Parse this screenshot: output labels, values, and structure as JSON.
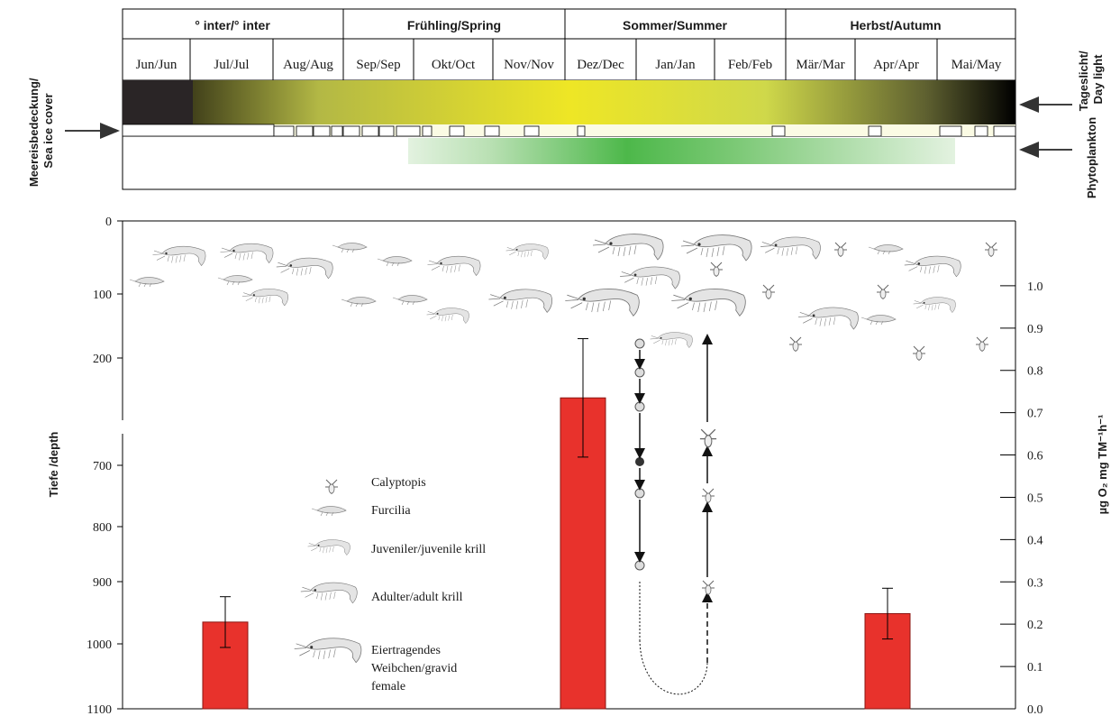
{
  "seasons": [
    "° inter/° inter",
    "Frühling/Spring",
    "Sommer/Summer",
    "Herbst/Autumn"
  ],
  "months": [
    "Jun/Jun",
    "Jul/Jul",
    "Aug/Aug",
    "Sep/Sep",
    "Okt/Oct",
    "Nov/Nov",
    "Dez/Dec",
    "Jan/Jan",
    "Feb/Feb",
    "Mär/Mar",
    "Apr/Apr",
    "Mai/May"
  ],
  "side_labels": {
    "daylight": [
      "Tageslicht/",
      "Day light"
    ],
    "sea_ice": [
      "Meereisbedeckung/",
      "Sea ice cover"
    ],
    "phytoplankton": "Phytoplankton"
  },
  "axes": {
    "left_label": "Tiefe /depth",
    "left_ticks": [
      "0",
      "100",
      "200",
      "700",
      "800",
      "900",
      "1000",
      "1100"
    ],
    "right_label": "µg O₂ mg TM⁻¹h⁻¹",
    "right_ticks": [
      "1.0",
      "0.9",
      "0.8",
      "0.7",
      "0.6",
      "0.5",
      "0.4",
      "0.3",
      "0.2",
      "0.1",
      "0.0"
    ]
  },
  "legend": {
    "calyptopis": "Calyptopis",
    "furcilia": "Furcilia",
    "juvenile": "Juveniler/juvenile krill",
    "adult": "Adulter/adult krill",
    "gravid": [
      "Eiertragendes",
      "Weibchen/gravid",
      "female"
    ]
  },
  "chart_data": {
    "type": "bar",
    "categories": [
      "Jul/Jul",
      "Dez/Dec",
      "Apr/Apr"
    ],
    "values": [
      0.205,
      0.735,
      0.225
    ],
    "errors_low": [
      0.145,
      0.595,
      0.165
    ],
    "errors_high": [
      0.265,
      0.875,
      0.285
    ],
    "ylim": [
      0.0,
      1.1
    ],
    "ylabel": "µg O₂ mg TM⁻¹h⁻¹",
    "bar_color": "#e8322c"
  },
  "colors": {
    "ice_dark": "#2a2526",
    "daylight_peak": "#eee625",
    "phyto_peak": "#4db84a"
  }
}
